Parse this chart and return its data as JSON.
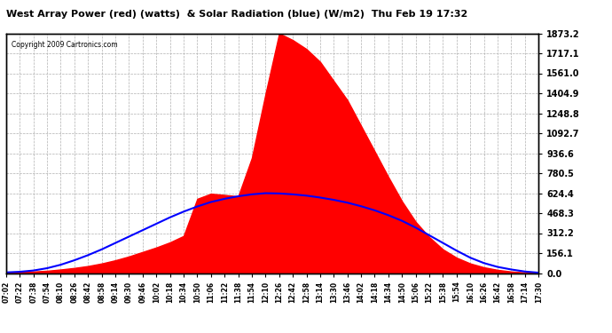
{
  "title": "West Array Power (red) (watts)  & Solar Radiation (blue) (W/m2)  Thu Feb 19 17:32",
  "copyright": "Copyright 2009 Cartronics.com",
  "ymax": 1873.2,
  "yticks": [
    0.0,
    156.1,
    312.2,
    468.3,
    624.4,
    780.5,
    936.6,
    1092.7,
    1248.8,
    1404.9,
    1561.0,
    1717.1,
    1873.2
  ],
  "xtick_labels": [
    "07:02",
    "07:22",
    "07:38",
    "07:54",
    "08:10",
    "08:26",
    "08:42",
    "08:58",
    "09:14",
    "09:30",
    "09:46",
    "10:02",
    "10:18",
    "10:34",
    "10:50",
    "11:06",
    "11:22",
    "11:38",
    "11:54",
    "12:10",
    "12:26",
    "12:42",
    "12:58",
    "13:14",
    "13:30",
    "13:46",
    "14:02",
    "14:18",
    "14:34",
    "14:50",
    "15:06",
    "15:22",
    "15:38",
    "15:54",
    "16:10",
    "16:26",
    "16:42",
    "16:58",
    "17:14",
    "17:30"
  ],
  "bg_color": "#ffffff",
  "plot_bg_color": "#ffffff",
  "grid_color": "#b0b0b0",
  "red_color": "#ff0000",
  "blue_color": "#0000ff",
  "power_data": [
    5,
    8,
    12,
    18,
    28,
    40,
    55,
    75,
    100,
    130,
    165,
    200,
    240,
    290,
    580,
    620,
    610,
    600,
    900,
    1400,
    1873,
    1820,
    1750,
    1650,
    1500,
    1350,
    1150,
    950,
    750,
    560,
    400,
    280,
    185,
    120,
    75,
    45,
    25,
    12,
    5,
    2
  ],
  "solar_data": [
    5,
    10,
    20,
    38,
    65,
    100,
    140,
    185,
    235,
    285,
    335,
    385,
    435,
    480,
    520,
    555,
    580,
    600,
    615,
    624,
    622,
    615,
    605,
    590,
    572,
    550,
    522,
    490,
    452,
    408,
    355,
    295,
    235,
    175,
    120,
    78,
    48,
    28,
    12,
    3
  ]
}
